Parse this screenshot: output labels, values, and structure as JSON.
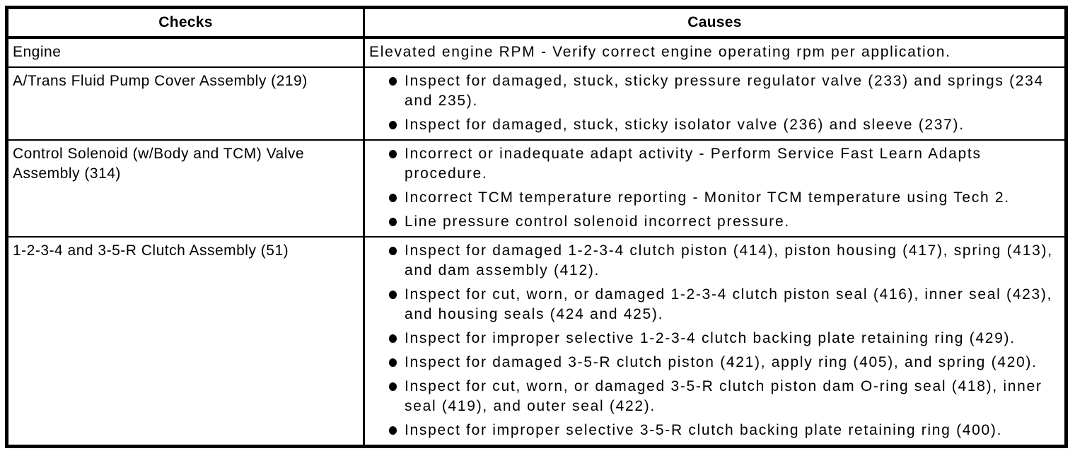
{
  "table": {
    "headers": [
      "Checks",
      "Causes"
    ],
    "rows": [
      {
        "check": "Engine",
        "bulleted": false,
        "causes": [
          {
            "text": "Elevated engine RPM - Verify correct engine operating rpm per application."
          }
        ]
      },
      {
        "check": "A/Trans Fluid Pump Cover Assembly (219)",
        "bulleted": true,
        "causes": [
          {
            "text": "Inspect for damaged, stuck, sticky pressure regulator valve (233) and springs (234 and 235)."
          },
          {
            "text": "Inspect for damaged, stuck, sticky isolator valve (236) and sleeve (237)."
          }
        ]
      },
      {
        "check": "Control Solenoid (w/Body and TCM) Valve Assembly (314)",
        "bulleted": true,
        "causes": [
          {
            "text": "Incorrect or inadequate adapt activity - Perform Service Fast Learn Adapts procedure."
          },
          {
            "text": "Incorrect TCM temperature reporting - Monitor TCM temperature using Tech 2."
          },
          {
            "text": "Line pressure control solenoid incorrect pressure."
          }
        ]
      },
      {
        "check": "1-2-3-4 and 3-5-R Clutch Assembly (51)",
        "bulleted": true,
        "causes": [
          {
            "text": "Inspect for damaged 1-2-3-4 clutch piston (414), piston housing (417), spring (413), and dam assembly (412)."
          },
          {
            "text": "Inspect for cut, worn, or damaged 1-2-3-4 clutch piston seal (416), inner seal (423), and housing seals (424 and 425)."
          },
          {
            "text": "Inspect for improper selective 1-2-3-4 clutch backing plate retaining ring (429)."
          },
          {
            "text": "Inspect for damaged 3-5-R clutch piston (421), apply ring (405), and spring (420)."
          },
          {
            "text": "Inspect for cut, worn, or damaged 3-5-R clutch piston dam O-ring seal (418), inner seal (419), and outer seal (422)."
          },
          {
            "text": "Inspect for improper selective 3-5-R clutch backing plate retaining ring (400)."
          }
        ]
      }
    ]
  },
  "colors": {
    "border": "#000000",
    "text": "#000000",
    "background": "#ffffff",
    "bullet": "#000000"
  }
}
